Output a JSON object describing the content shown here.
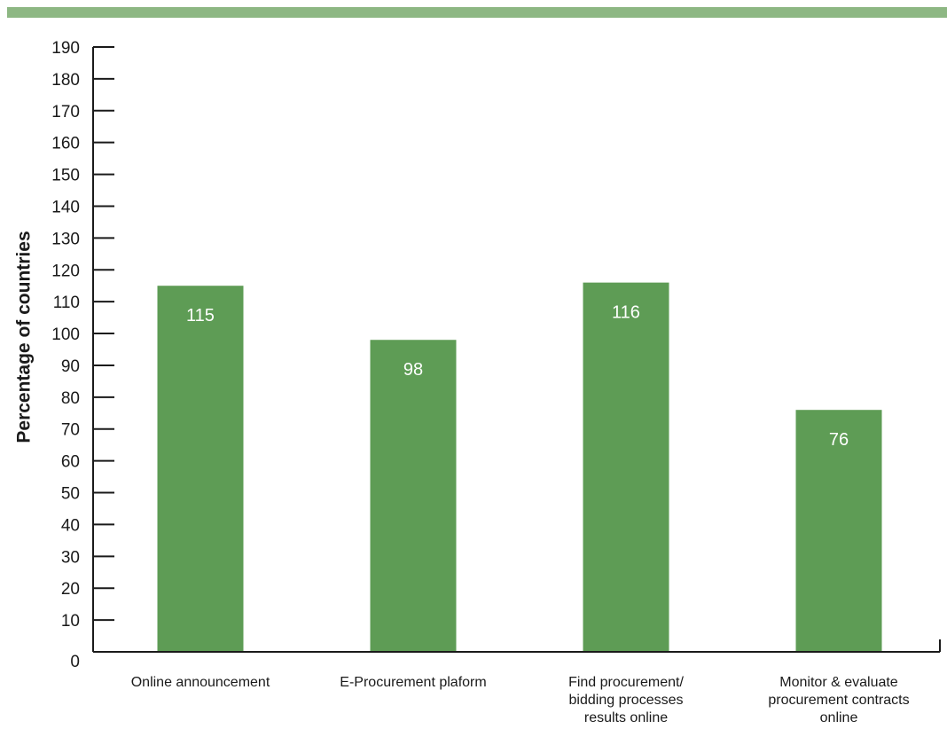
{
  "colors": {
    "bar": "#5e9c55",
    "top_band": "#8db783",
    "axis": "#1a1a1a"
  },
  "chart_data": {
    "type": "bar",
    "title": "",
    "xlabel": "",
    "ylabel": "Percentage of countries",
    "categories": [
      [
        "Online announcement"
      ],
      [
        "E-Procurement plaform"
      ],
      [
        "Find procurement/",
        "bidding processes",
        "results online"
      ],
      [
        "Monitor & evaluate",
        "procurement contracts",
        "online"
      ]
    ],
    "values": [
      115,
      98,
      116,
      76
    ],
    "data_labels": [
      "115",
      "98",
      "116",
      "76"
    ],
    "ylim": [
      0,
      190
    ],
    "yticks": [
      0,
      10,
      20,
      30,
      40,
      50,
      60,
      70,
      80,
      90,
      100,
      110,
      120,
      130,
      140,
      150,
      160,
      170,
      180,
      190
    ],
    "grid": false,
    "legend": "none"
  }
}
